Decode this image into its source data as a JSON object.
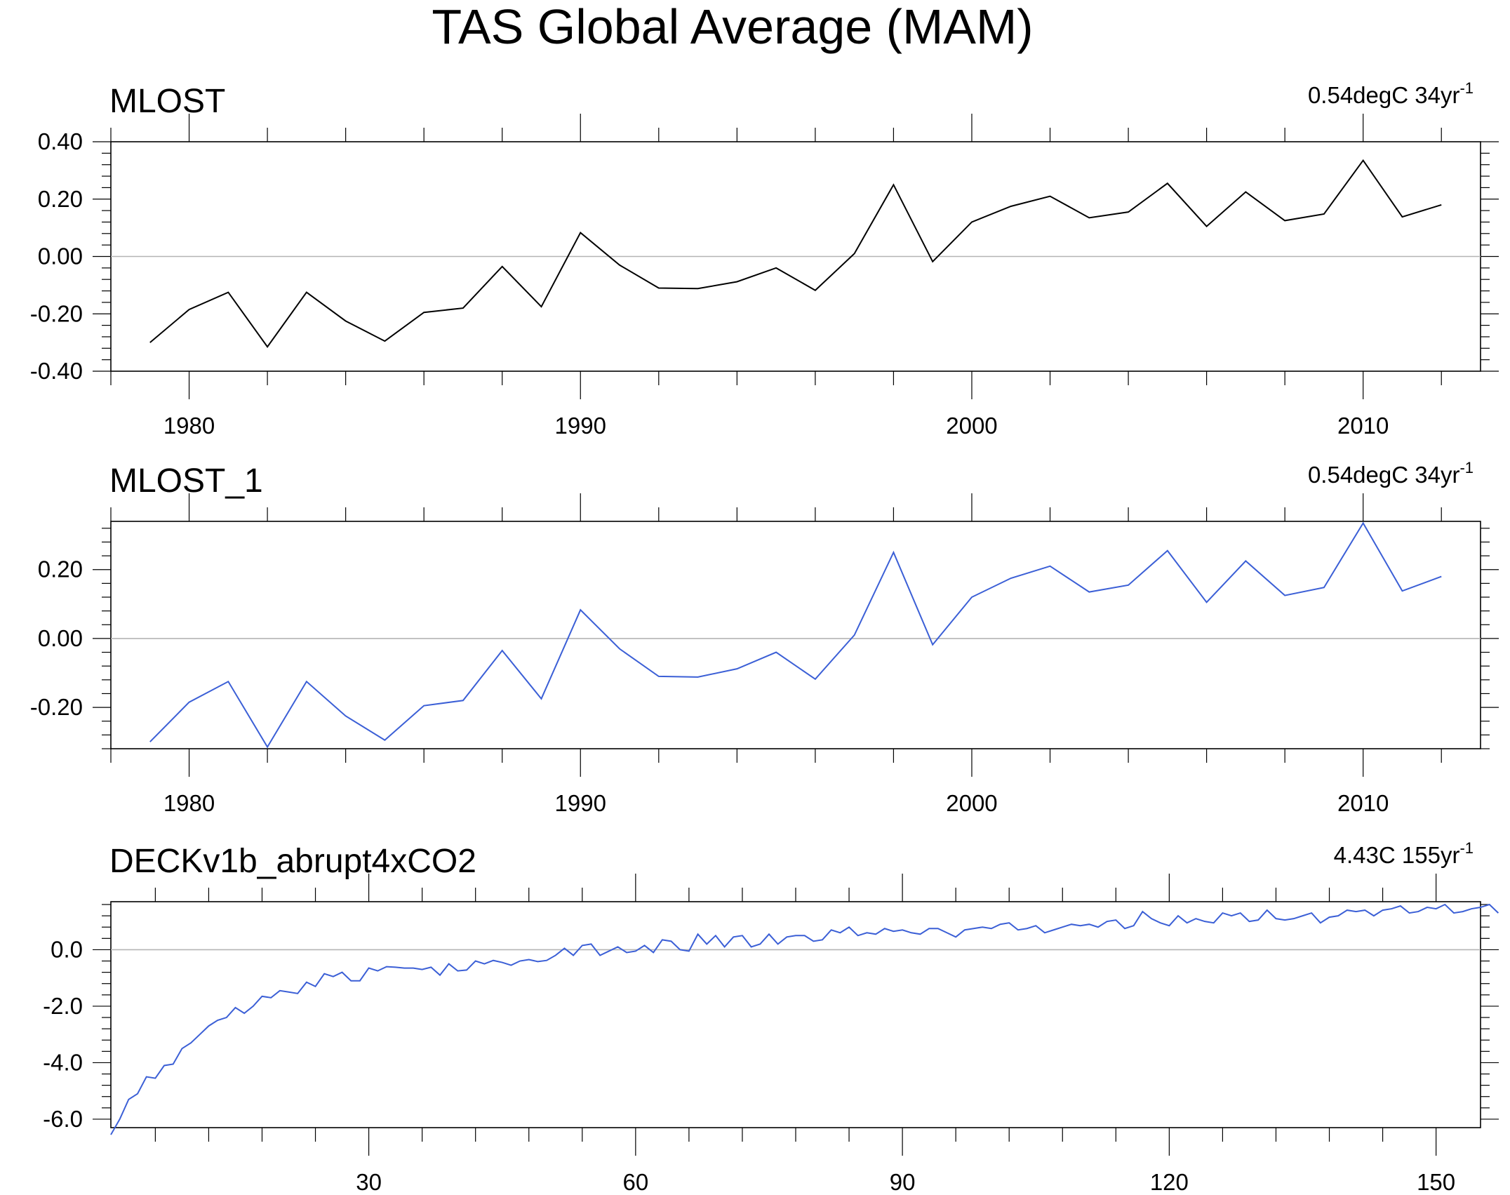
{
  "figure": {
    "title": "TAS Global Average (MAM)"
  },
  "chart_data": [
    {
      "type": "line",
      "title": "MLOST",
      "annotation": "0.54degC 34yr",
      "annotation_sup": "-1",
      "x_start": 1979,
      "x_step": 1,
      "xlim": [
        1978,
        2013
      ],
      "ylim": [
        -0.4,
        0.4
      ],
      "x_ticks": [
        1980,
        1990,
        2000,
        2010
      ],
      "x_tick_labels": [
        "1980",
        "1990",
        "2000",
        "2010"
      ],
      "y_ticks": [
        -0.4,
        -0.2,
        0.0,
        0.2,
        0.4
      ],
      "y_tick_labels": [
        "-0.40",
        "-0.20",
        "0.00",
        "0.20",
        "0.40"
      ],
      "reference_line": 0,
      "line_color": "#000000",
      "values": [
        -0.3,
        -0.185,
        -0.125,
        -0.315,
        -0.125,
        -0.225,
        -0.295,
        -0.195,
        -0.18,
        -0.035,
        -0.175,
        0.083,
        -0.03,
        -0.11,
        -0.112,
        -0.088,
        -0.04,
        -0.118,
        0.01,
        0.25,
        -0.018,
        0.12,
        0.175,
        0.21,
        0.135,
        0.155,
        0.255,
        0.105,
        0.225,
        0.125,
        0.148,
        0.335,
        0.138,
        0.18
      ]
    },
    {
      "type": "line",
      "title": "MLOST_1",
      "annotation": "0.54degC 34yr",
      "annotation_sup": "-1",
      "x_start": 1979,
      "x_step": 1,
      "xlim": [
        1978,
        2013
      ],
      "ylim": [
        -0.32,
        0.34
      ],
      "x_ticks": [
        1980,
        1990,
        2000,
        2010
      ],
      "x_tick_labels": [
        "1980",
        "1990",
        "2000",
        "2010"
      ],
      "y_ticks": [
        -0.2,
        0.0,
        0.2
      ],
      "y_tick_labels": [
        "-0.20",
        "0.00",
        "0.20"
      ],
      "reference_line": 0,
      "line_color": "#3b5fd6",
      "values": [
        -0.3,
        -0.185,
        -0.125,
        -0.315,
        -0.125,
        -0.225,
        -0.295,
        -0.195,
        -0.18,
        -0.035,
        -0.175,
        0.083,
        -0.03,
        -0.11,
        -0.112,
        -0.088,
        -0.04,
        -0.118,
        0.01,
        0.25,
        -0.018,
        0.12,
        0.175,
        0.21,
        0.135,
        0.155,
        0.255,
        0.105,
        0.225,
        0.125,
        0.148,
        0.335,
        0.138,
        0.18
      ]
    },
    {
      "type": "line",
      "title": "DECKv1b_abrupt4xCO2",
      "annotation": "4.43C 155yr",
      "annotation_sup": "-1",
      "x_start": 1,
      "x_step": 1,
      "xlim": [
        1,
        155
      ],
      "ylim": [
        -6.3,
        1.7
      ],
      "x_ticks": [
        30,
        60,
        90,
        120,
        150
      ],
      "x_tick_labels": [
        "30",
        "60",
        "90",
        "120",
        "150"
      ],
      "y_ticks": [
        -6.0,
        -4.0,
        -2.0,
        0.0
      ],
      "y_tick_labels": [
        "-6.0",
        "-4.0",
        "-2.0",
        "0.0"
      ],
      "reference_line": 0,
      "line_color": "#3b5fd6",
      "values": [
        -6.55,
        -6.0,
        -5.3,
        -5.1,
        -4.5,
        -4.55,
        -4.1,
        -4.05,
        -3.5,
        -3.3,
        -3.0,
        -2.7,
        -2.5,
        -2.4,
        -2.05,
        -2.25,
        -2.0,
        -1.65,
        -1.7,
        -1.45,
        -1.5,
        -1.55,
        -1.15,
        -1.3,
        -0.85,
        -0.95,
        -0.8,
        -1.1,
        -1.1,
        -0.65,
        -0.75,
        -0.6,
        -0.62,
        -0.65,
        -0.65,
        -0.7,
        -0.62,
        -0.9,
        -0.5,
        -0.75,
        -0.72,
        -0.4,
        -0.5,
        -0.38,
        -0.45,
        -0.55,
        -0.4,
        -0.35,
        -0.42,
        -0.38,
        -0.2,
        0.05,
        -0.2,
        0.15,
        0.2,
        -0.2,
        -0.05,
        0.1,
        -0.1,
        -0.05,
        0.15,
        -0.1,
        0.35,
        0.3,
        0.0,
        -0.05,
        0.55,
        0.2,
        0.5,
        0.1,
        0.45,
        0.5,
        0.1,
        0.2,
        0.55,
        0.2,
        0.45,
        0.5,
        0.5,
        0.3,
        0.35,
        0.7,
        0.6,
        0.8,
        0.5,
        0.6,
        0.55,
        0.75,
        0.65,
        0.7,
        0.6,
        0.55,
        0.75,
        0.75,
        0.6,
        0.45,
        0.7,
        0.75,
        0.8,
        0.75,
        0.9,
        0.95,
        0.7,
        0.75,
        0.85,
        0.6,
        0.7,
        0.8,
        0.9,
        0.85,
        0.9,
        0.8,
        1.0,
        1.05,
        0.75,
        0.85,
        1.35,
        1.1,
        0.95,
        0.85,
        1.2,
        0.95,
        1.1,
        1.0,
        0.95,
        1.3,
        1.2,
        1.3,
        1.0,
        1.05,
        1.4,
        1.1,
        1.05,
        1.1,
        1.2,
        1.3,
        0.95,
        1.15,
        1.2,
        1.4,
        1.35,
        1.4,
        1.2,
        1.4,
        1.45,
        1.55,
        1.3,
        1.35,
        1.5,
        1.45,
        1.6,
        1.3,
        1.35,
        1.45,
        1.5,
        1.6,
        1.3
      ]
    }
  ]
}
